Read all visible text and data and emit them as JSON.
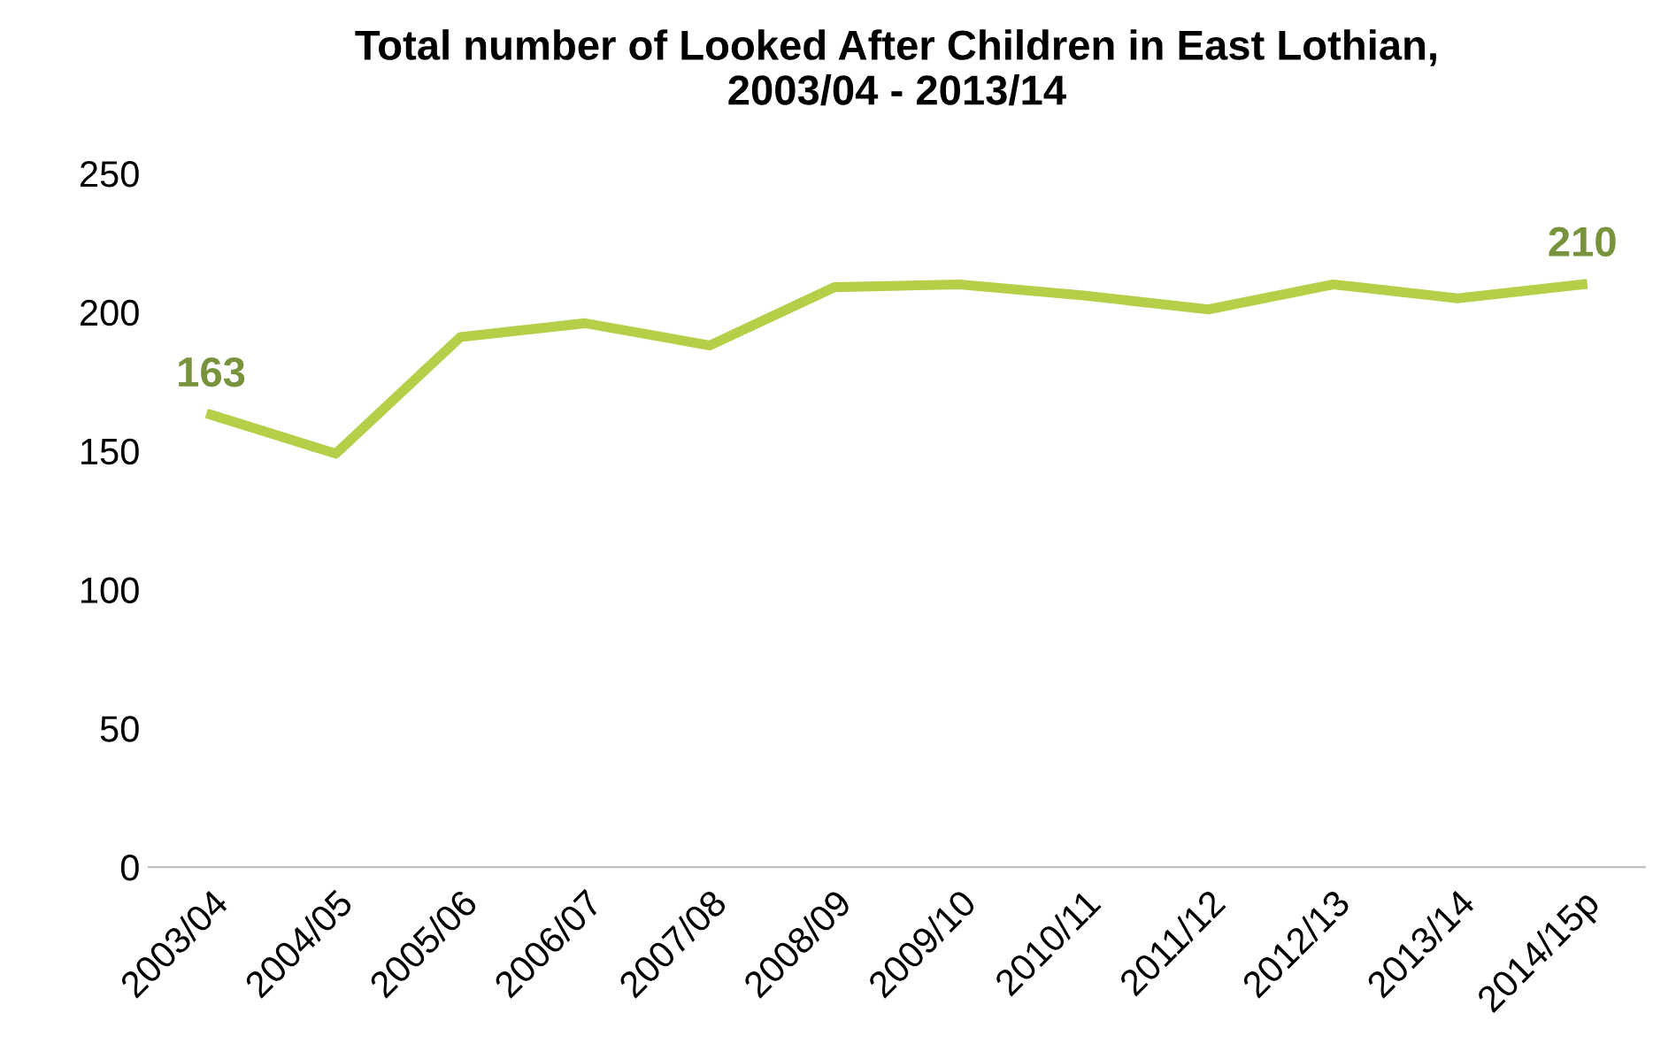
{
  "chart_data": {
    "type": "line",
    "title": "Total number of Looked After Children in East Lothian,\n2003/04 - 2013/14",
    "categories": [
      "2003/04",
      "2004/05",
      "2005/06",
      "2006/07",
      "2007/08",
      "2008/09",
      "2009/10",
      "2010/11",
      "2011/12",
      "2012/13",
      "2013/14",
      "2014/15p"
    ],
    "series": [
      {
        "color": "#b5cf49",
        "values": [
          163,
          149,
          191,
          196,
          188,
          209,
          210,
          206,
          201,
          210,
          205,
          210
        ],
        "value_labels": [
          "163",
          null,
          null,
          null,
          null,
          null,
          null,
          null,
          null,
          null,
          null,
          "210"
        ]
      }
    ],
    "ylim": [
      0,
      250
    ],
    "yticks": [
      0,
      50,
      100,
      150,
      200,
      250
    ],
    "grid": false,
    "legend": false,
    "marker": "none",
    "line_style": "solid"
  }
}
